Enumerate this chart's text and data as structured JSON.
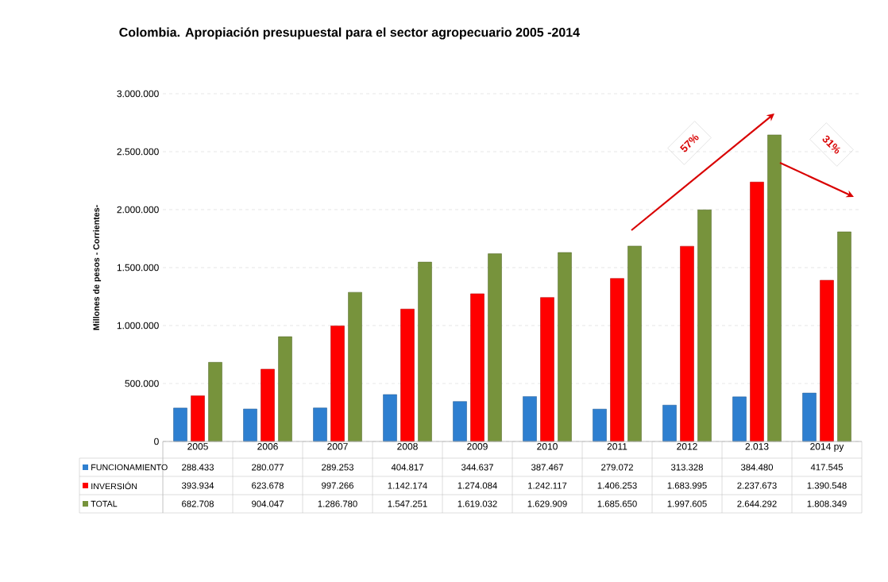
{
  "chart_data": {
    "type": "bar",
    "title": "Colombia. Apropiación presupuestal para el sector agropecuario 2005 -2014",
    "ylabel": "Millones de pesos - Corrientes-",
    "categories": [
      "2005",
      "2006",
      "2007",
      "2008",
      "2009",
      "2010",
      "2011",
      "2012",
      "2.013",
      "2014 py"
    ],
    "series": [
      {
        "name": "FUNCIONAMIENTO",
        "color": "#2e7fd0",
        "values": [
          288433,
          280077,
          289253,
          404817,
          344637,
          387467,
          279072,
          313328,
          384480,
          417545
        ],
        "value_labels": [
          "288.433",
          "280.077",
          "289.253",
          "404.817",
          "344.637",
          "387.467",
          "279.072",
          "313.328",
          "384.480",
          "417.545"
        ]
      },
      {
        "name": "INVERSIÓN",
        "color": "#ff0000",
        "values": [
          393934,
          623678,
          997266,
          1142174,
          1274084,
          1242117,
          1406253,
          1683995,
          2237673,
          1390548
        ],
        "value_labels": [
          "393.934",
          "623.678",
          "997.266",
          "1.142.174",
          "1.274.084",
          "1.242.117",
          "1.406.253",
          "1.683.995",
          "2.237.673",
          "1.390.548"
        ]
      },
      {
        "name": "TOTAL",
        "color": "#77933c",
        "values": [
          682708,
          904047,
          1286780,
          1547251,
          1619032,
          1629909,
          1685650,
          1997605,
          2644292,
          1808349
        ],
        "value_labels": [
          "682.708",
          "904.047",
          "1.286.780",
          "1.547.251",
          "1.619.032",
          "1.629.909",
          "1.685.650",
          "1.997.605",
          "2.644.292",
          "1.808.349"
        ]
      }
    ],
    "ylim": [
      0,
      3000000
    ],
    "yticks": [
      0,
      {
        "value": 500000,
        "label": "500.000"
      },
      {
        "value": 1000000,
        "label": "1.000.000"
      },
      {
        "value": 1500000,
        "label": "1.500.000"
      },
      {
        "value": 2000000,
        "label": "2.000.000"
      },
      {
        "value": 2500000,
        "label": "2.500.000"
      },
      {
        "value": 3000000,
        "label": "3.000.000"
      }
    ],
    "grid": "y",
    "legend": "bottom",
    "annotations": [
      "57%",
      "31%"
    ]
  }
}
